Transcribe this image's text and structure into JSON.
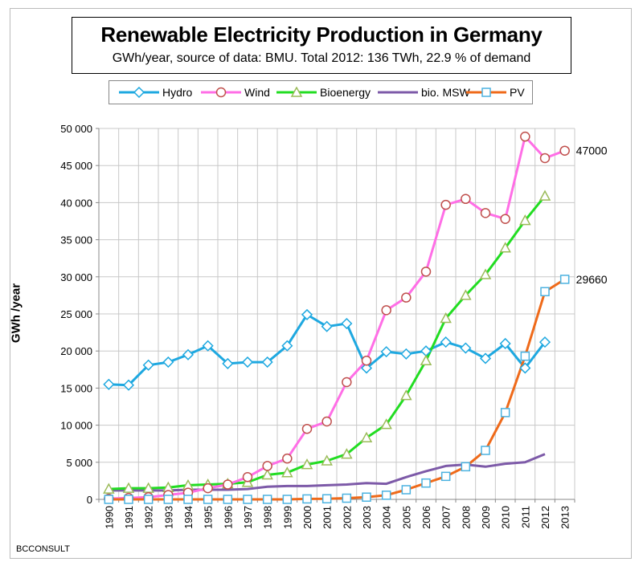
{
  "chart_data": {
    "type": "line",
    "title": "Renewable Electricity Production in Germany",
    "subtitle": "GWh/year, source of data: BMU. Total 2012: 136 TWh, 22.9 % of demand",
    "xlabel": "",
    "ylabel": "GWh /year",
    "x": [
      "1990",
      "1991",
      "1992",
      "1993",
      "1994",
      "1995",
      "1996",
      "1997",
      "1998",
      "1999",
      "2000",
      "2001",
      "2002",
      "2003",
      "2004",
      "2005",
      "2006",
      "2007",
      "2008",
      "2009",
      "2010",
      "2011",
      "2012",
      "2013"
    ],
    "ylim": [
      0,
      50000
    ],
    "yticks": [
      0,
      5000,
      10000,
      15000,
      20000,
      25000,
      30000,
      35000,
      40000,
      45000,
      50000
    ],
    "ytick_labels": [
      "0",
      "5 000",
      "10 000",
      "15 000",
      "20 000",
      "25 000",
      "30 000",
      "35 000",
      "40 000",
      "45 000",
      "50 000"
    ],
    "grid": true,
    "legend_position": "top",
    "series": [
      {
        "name": "Hydro",
        "color": "#1ea8e0",
        "marker": "diamond",
        "values": [
          15500,
          15400,
          18100,
          18500,
          19500,
          20700,
          18300,
          18500,
          18500,
          20700,
          24900,
          23300,
          23700,
          17700,
          19900,
          19600,
          20000,
          21200,
          20400,
          19000,
          21000,
          17700,
          21200,
          null
        ]
      },
      {
        "name": "Wind",
        "color": "#ff6ee6",
        "marker": "circle",
        "values": [
          100,
          200,
          300,
          600,
          900,
          1500,
          2000,
          3000,
          4500,
          5500,
          9500,
          10500,
          15800,
          18700,
          25500,
          27200,
          30700,
          39700,
          40500,
          38600,
          37800,
          48900,
          46000,
          47000
        ]
      },
      {
        "name": "Bioenergy",
        "color": "#22dd22",
        "marker": "triangle",
        "values": [
          1400,
          1500,
          1500,
          1600,
          1900,
          2000,
          2100,
          2300,
          3300,
          3600,
          4700,
          5200,
          6100,
          8300,
          10100,
          14000,
          18700,
          24400,
          27500,
          30300,
          33900,
          37600,
          40900,
          null
        ]
      },
      {
        "name": "bio. MSW",
        "color": "#7d5aa8",
        "marker": "none",
        "values": [
          1200,
          1200,
          1200,
          1200,
          1300,
          1300,
          1300,
          1400,
          1700,
          1800,
          1800,
          1900,
          2000,
          2200,
          2100,
          3000,
          3800,
          4500,
          4700,
          4400,
          4800,
          5000,
          6100,
          null
        ]
      },
      {
        "name": "PV",
        "color": "#ef6a1a",
        "marker": "square",
        "marker_color": "#4bb2e0",
        "values": [
          0,
          0,
          0,
          0,
          0,
          0,
          0,
          0,
          0,
          0,
          60,
          80,
          160,
          300,
          560,
          1300,
          2200,
          3100,
          4400,
          6600,
          11700,
          19300,
          28000,
          29660
        ]
      }
    ],
    "annotations": [
      {
        "text": "47000",
        "series": "Wind",
        "x": "2013"
      },
      {
        "text": "29660",
        "series": "PV",
        "x": "2013"
      }
    ]
  },
  "credit": "BCCONSULT"
}
